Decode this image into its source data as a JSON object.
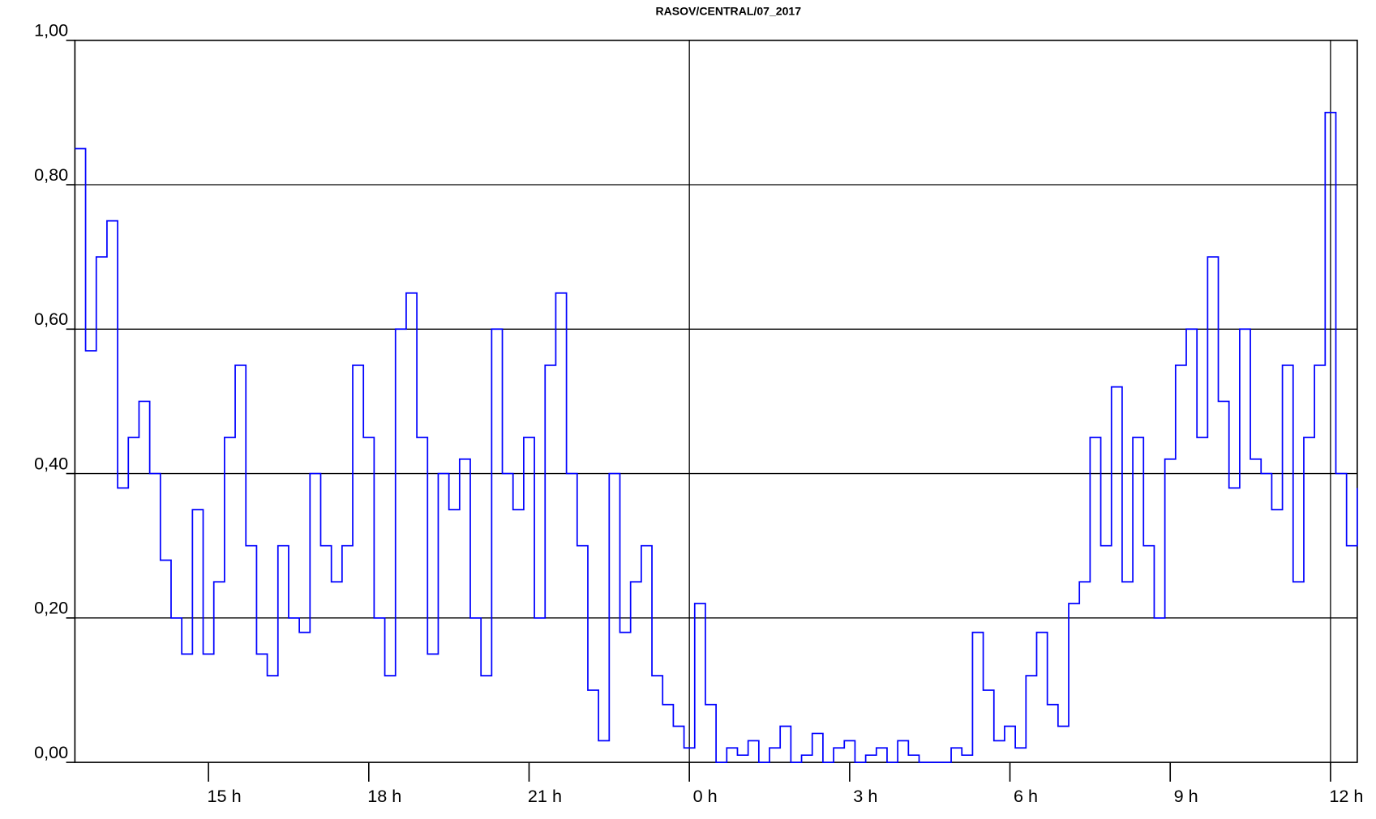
{
  "chart_data": {
    "type": "line",
    "step": true,
    "title": "RASOV/CENTRAL/07_2017",
    "color": "#0000ff",
    "x": [
      -11.5,
      -11.3,
      -11.1,
      -10.9,
      -10.7,
      -10.5,
      -10.3,
      -10.1,
      -9.9,
      -9.7,
      -9.5,
      -9.3,
      -9.1,
      -8.9,
      -8.7,
      -8.5,
      -8.3,
      -8.1,
      -7.9,
      -7.7,
      -7.5,
      -7.3,
      -7.1,
      -6.9,
      -6.7,
      -6.5,
      -6.3,
      -6.1,
      -5.9,
      -5.7,
      -5.5,
      -5.3,
      -5.1,
      -4.9,
      -4.7,
      -4.5,
      -4.3,
      -4.1,
      -3.9,
      -3.7,
      -3.5,
      -3.3,
      -3.1,
      -2.9,
      -2.7,
      -2.5,
      -2.3,
      -2.1,
      -1.9,
      -1.7,
      -1.5,
      -1.3,
      -1.1,
      -0.9,
      -0.7,
      -0.5,
      -0.3,
      -0.1,
      0.1,
      0.3,
      0.5,
      0.7,
      0.9,
      1.1,
      1.3,
      1.5,
      1.7,
      1.9,
      2.1,
      2.3,
      2.5,
      2.7,
      2.9,
      3.1,
      3.3,
      3.5,
      3.7,
      3.9,
      4.1,
      4.3,
      4.5,
      4.7,
      4.9,
      5.1,
      5.3,
      5.5,
      5.7,
      5.9,
      6.1,
      6.3,
      6.5,
      6.7,
      6.9,
      7.1,
      7.3,
      7.5,
      7.7,
      7.9,
      8.1,
      8.3,
      8.5,
      8.7,
      8.9,
      9.1,
      9.3,
      9.5,
      9.7,
      9.9,
      10.1,
      10.3,
      10.5,
      10.7,
      10.9,
      11.1,
      11.3,
      11.5,
      11.7,
      11.9,
      12.1,
      12.3,
      12.5
    ],
    "values": [
      0.85,
      0.57,
      0.7,
      0.75,
      0.38,
      0.45,
      0.5,
      0.4,
      0.28,
      0.2,
      0.15,
      0.35,
      0.15,
      0.25,
      0.45,
      0.55,
      0.3,
      0.15,
      0.12,
      0.3,
      0.2,
      0.18,
      0.4,
      0.3,
      0.25,
      0.3,
      0.55,
      0.45,
      0.2,
      0.12,
      0.6,
      0.65,
      0.45,
      0.15,
      0.4,
      0.35,
      0.42,
      0.2,
      0.12,
      0.6,
      0.4,
      0.35,
      0.45,
      0.2,
      0.55,
      0.65,
      0.4,
      0.3,
      0.1,
      0.03,
      0.4,
      0.18,
      0.25,
      0.3,
      0.12,
      0.08,
      0.05,
      0.02,
      0.22,
      0.08,
      0.0,
      0.02,
      0.01,
      0.03,
      0.0,
      0.02,
      0.05,
      0.0,
      0.01,
      0.04,
      0.0,
      0.02,
      0.03,
      0.0,
      0.01,
      0.02,
      0.0,
      0.03,
      0.01,
      0.0,
      0.0,
      0.0,
      0.02,
      0.01,
      0.18,
      0.1,
      0.03,
      0.05,
      0.02,
      0.12,
      0.18,
      0.08,
      0.05,
      0.22,
      0.25,
      0.45,
      0.3,
      0.52,
      0.25,
      0.45,
      0.3,
      0.2,
      0.42,
      0.55,
      0.6,
      0.45,
      0.7,
      0.5,
      0.38,
      0.6,
      0.42,
      0.4,
      0.35,
      0.55,
      0.25,
      0.45,
      0.55,
      0.9,
      0.4,
      0.3,
      0.38
    ],
    "xlim": [
      -11.5,
      12.5
    ],
    "xticks": [
      {
        "value": -9,
        "label": "15 h"
      },
      {
        "value": -6,
        "label": "18 h"
      },
      {
        "value": -3,
        "label": "21 h"
      },
      {
        "value": 0,
        "label": "0 h"
      },
      {
        "value": 3,
        "label": "3 h"
      },
      {
        "value": 6,
        "label": "6 h"
      },
      {
        "value": 9,
        "label": "9 h"
      },
      {
        "value": 12,
        "label": "12 h"
      }
    ],
    "vlines": [
      0,
      12
    ],
    "ylim": [
      0,
      1
    ],
    "yticks": [
      {
        "value": 0,
        "label": "0,00"
      },
      {
        "value": 0.2,
        "label": "0,20"
      },
      {
        "value": 0.4,
        "label": "0,40"
      },
      {
        "value": 0.6,
        "label": "0,60"
      },
      {
        "value": 0.8,
        "label": "0,80"
      },
      {
        "value": 1,
        "label": "1,00"
      }
    ],
    "grid": true
  }
}
